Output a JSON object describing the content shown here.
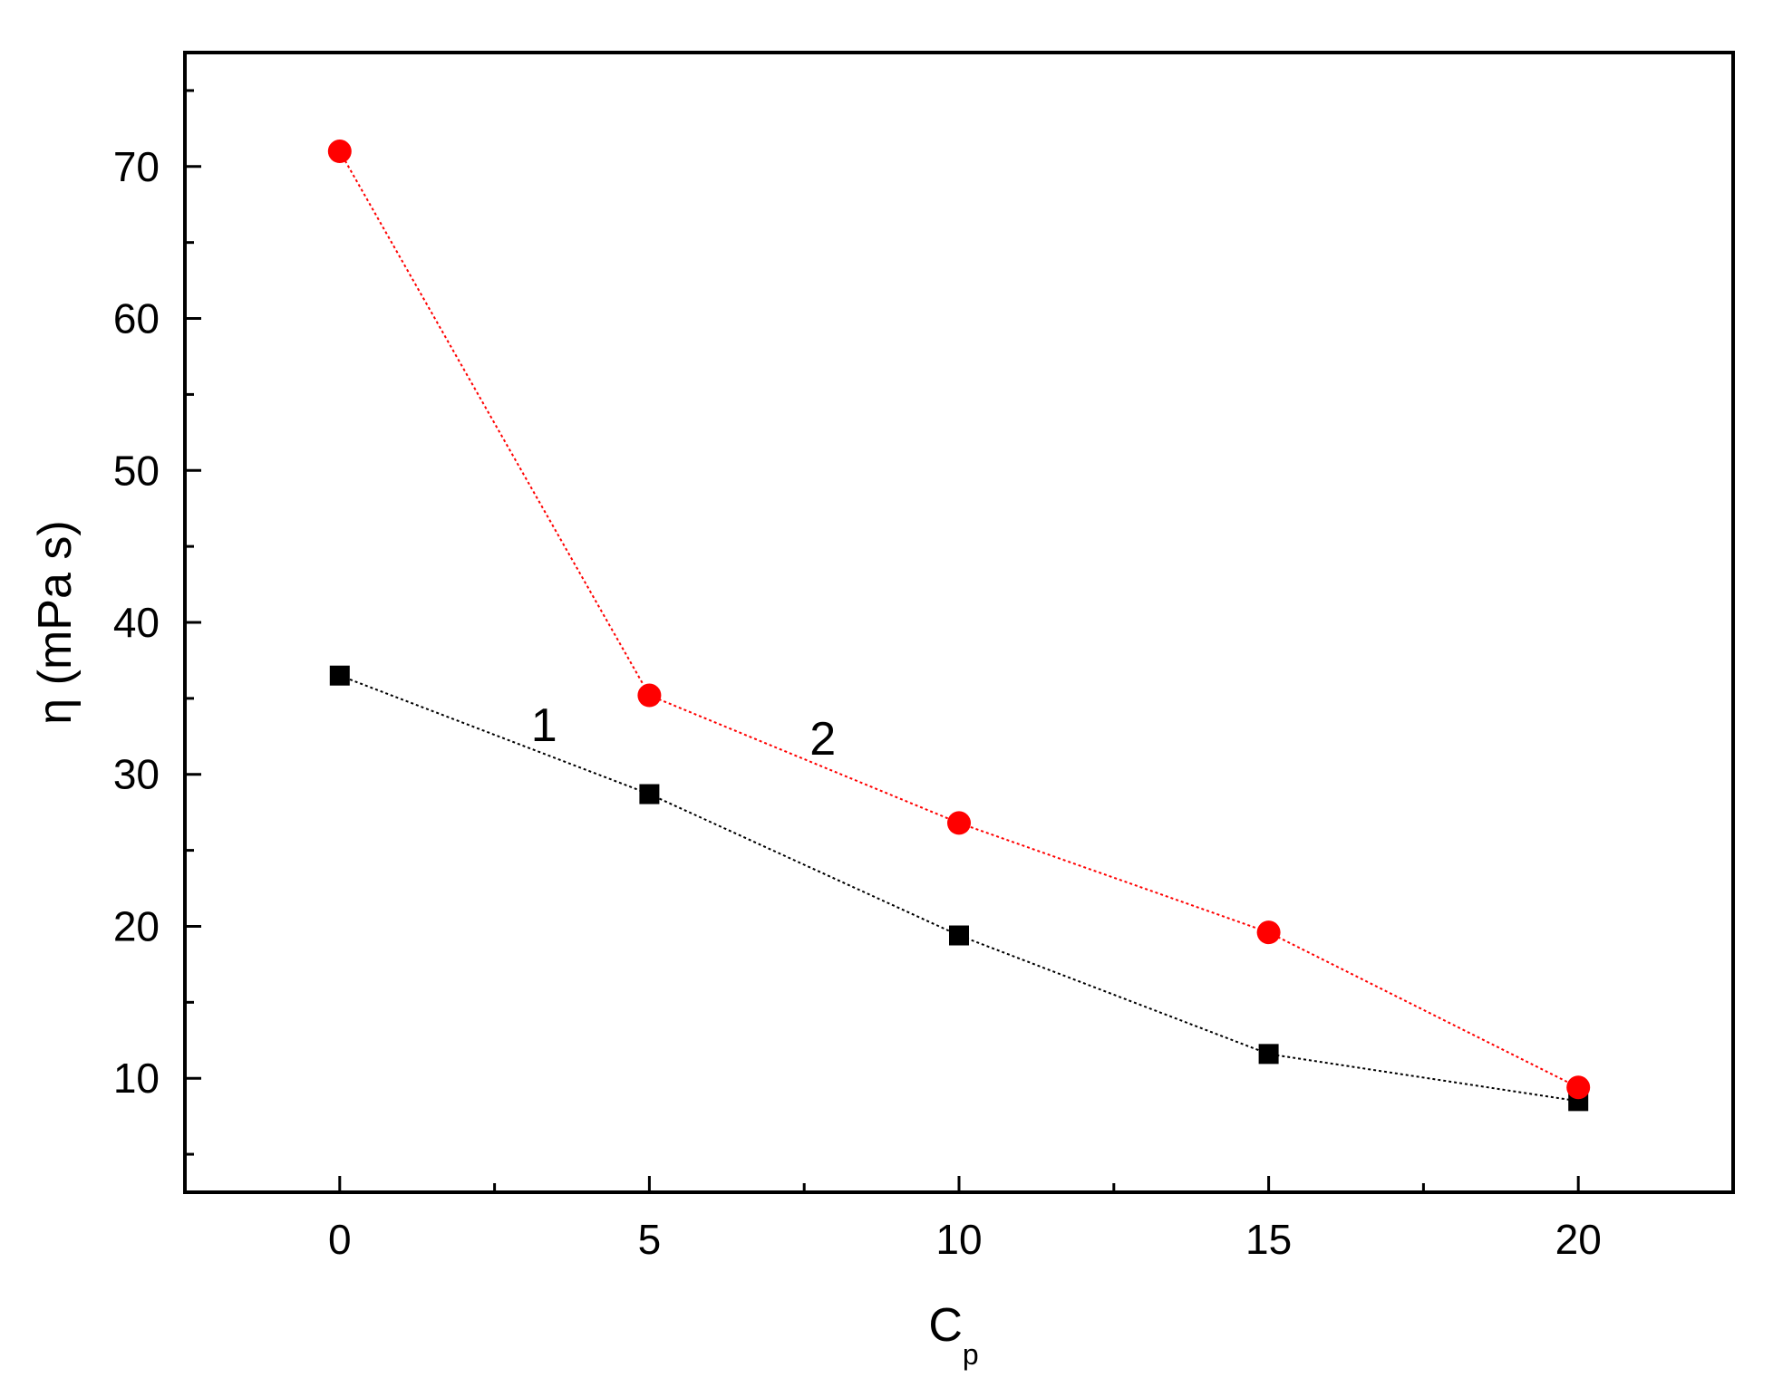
{
  "chart_data": {
    "type": "line",
    "xlabel": "C",
    "xlabel_subscript": "p",
    "ylabel": "η (mPa s)",
    "xlim": [
      -2.5,
      22.5
    ],
    "ylim": [
      2.5,
      77.5
    ],
    "x_ticks": [
      0,
      5,
      10,
      15,
      20
    ],
    "x_tick_labels": [
      "0",
      "5",
      "10",
      "15",
      "20"
    ],
    "x_minor_ticks": [
      2.5,
      7.5,
      12.5,
      17.5
    ],
    "y_ticks": [
      10,
      20,
      30,
      40,
      50,
      60,
      70
    ],
    "y_tick_labels": [
      "10",
      "20",
      "30",
      "40",
      "50",
      "60",
      "70"
    ],
    "y_minor_ticks": [
      5,
      15,
      25,
      35,
      45,
      55,
      65,
      75
    ],
    "grid": false,
    "series": [
      {
        "label": "1",
        "color": "#000000",
        "marker": "square",
        "line_style": "dotted",
        "label_position": {
          "x": 3.3,
          "y": 32.2
        },
        "x": [
          0,
          5,
          10,
          15,
          20
        ],
        "y": [
          36.5,
          28.7,
          19.4,
          11.6,
          8.5
        ]
      },
      {
        "label": "2",
        "color": "#ff0000",
        "marker": "circle",
        "line_style": "dotted",
        "label_position": {
          "x": 7.8,
          "y": 31.3
        },
        "x": [
          0,
          5,
          10,
          15,
          20
        ],
        "y": [
          71.0,
          35.2,
          26.8,
          19.6,
          9.4
        ]
      }
    ]
  }
}
